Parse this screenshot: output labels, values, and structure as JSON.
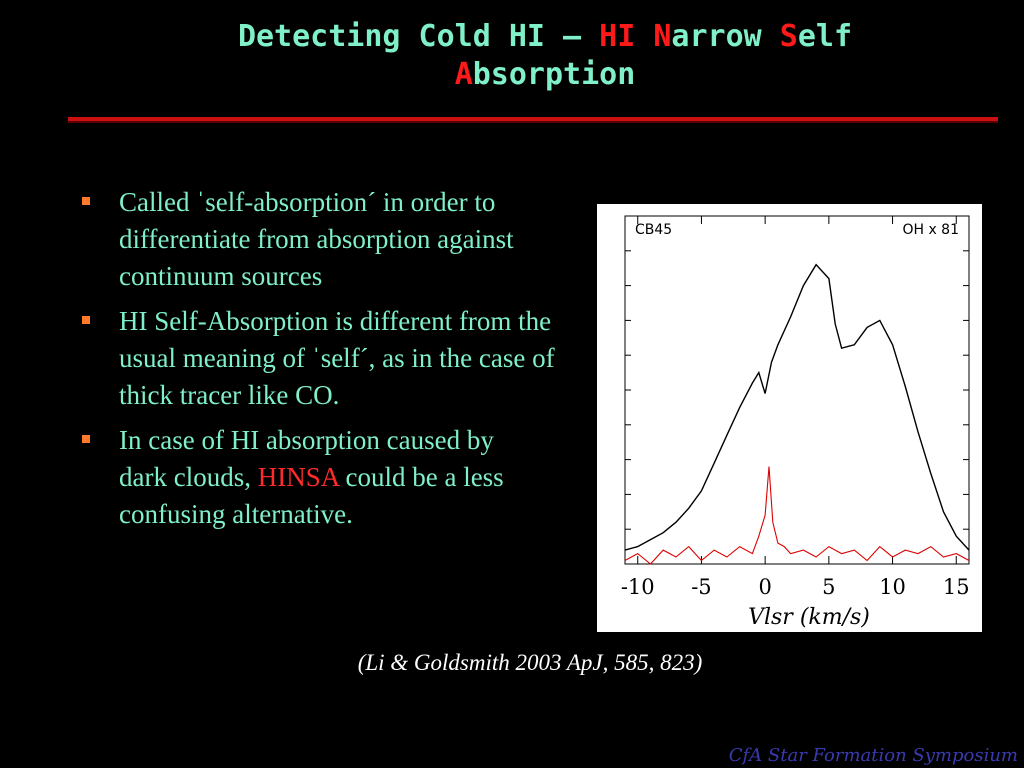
{
  "slide": {
    "title_parts": [
      "Detecting Cold HI – ",
      "HI ",
      "N",
      "arrow ",
      "S",
      "elf",
      "A",
      "bsorption"
    ],
    "bullets": [
      {
        "text": "Called ˈself-absorptionˊ in order to differentiate from absorption against continuum sources"
      },
      {
        "text": "HI Self-Absorption is different from the usual meaning of ˈselfˊ, as in the case of thick tracer like CO."
      },
      {
        "pre": " In case of HI absorption caused by",
        "pre2": "dark clouds,  ",
        "highlight": "HINSA",
        "post": " could be a less confusing alternative."
      }
    ],
    "citation": "(Li & Goldsmith 2003 ApJ, 585, 823)",
    "footer": "CfA Star Formation Symposium"
  },
  "colors": {
    "background": "#000000",
    "text": "#7ff0c8",
    "accent": "#ff1a1a",
    "bullet_marker": "#ff7a2a",
    "footer": "#3a3ab0"
  },
  "chart_data": {
    "type": "line",
    "title": "",
    "panel_label_left": "CB45",
    "panel_label_right": "OH x 81",
    "xlabel": "Vlsr (km/s)",
    "ylabel": "",
    "xlim": [
      -11,
      16
    ],
    "ylim": [
      0,
      1
    ],
    "x_ticks": [
      -10,
      -5,
      0,
      5,
      10,
      15
    ],
    "series": [
      {
        "color": "#000000",
        "x": [
          -11,
          -10,
          -9,
          -8,
          -7,
          -6,
          -5,
          -4,
          -3,
          -2,
          -1,
          -0.5,
          0,
          0.5,
          1,
          2,
          3,
          4,
          5,
          5.5,
          6,
          7,
          8,
          9,
          10,
          11,
          12,
          13,
          14,
          15,
          16
        ],
        "y": [
          0.04,
          0.05,
          0.07,
          0.09,
          0.12,
          0.16,
          0.21,
          0.29,
          0.37,
          0.45,
          0.52,
          0.55,
          0.49,
          0.58,
          0.63,
          0.71,
          0.8,
          0.86,
          0.82,
          0.69,
          0.62,
          0.63,
          0.68,
          0.7,
          0.63,
          0.51,
          0.38,
          0.26,
          0.15,
          0.08,
          0.04
        ]
      },
      {
        "color": "#dd0000",
        "x": [
          -11,
          -10,
          -9,
          -8,
          -7,
          -6,
          -5,
          -4,
          -3,
          -2,
          -1,
          -0.5,
          0,
          0.3,
          0.6,
          1,
          1.5,
          2,
          3,
          4,
          5,
          6,
          7,
          8,
          9,
          10,
          11,
          12,
          13,
          14,
          15,
          16
        ],
        "y": [
          0.01,
          0.03,
          0.0,
          0.04,
          0.02,
          0.05,
          0.01,
          0.04,
          0.02,
          0.05,
          0.03,
          0.08,
          0.14,
          0.28,
          0.12,
          0.06,
          0.05,
          0.03,
          0.04,
          0.02,
          0.05,
          0.03,
          0.04,
          0.01,
          0.05,
          0.02,
          0.04,
          0.03,
          0.05,
          0.02,
          0.03,
          0.01
        ]
      }
    ]
  }
}
